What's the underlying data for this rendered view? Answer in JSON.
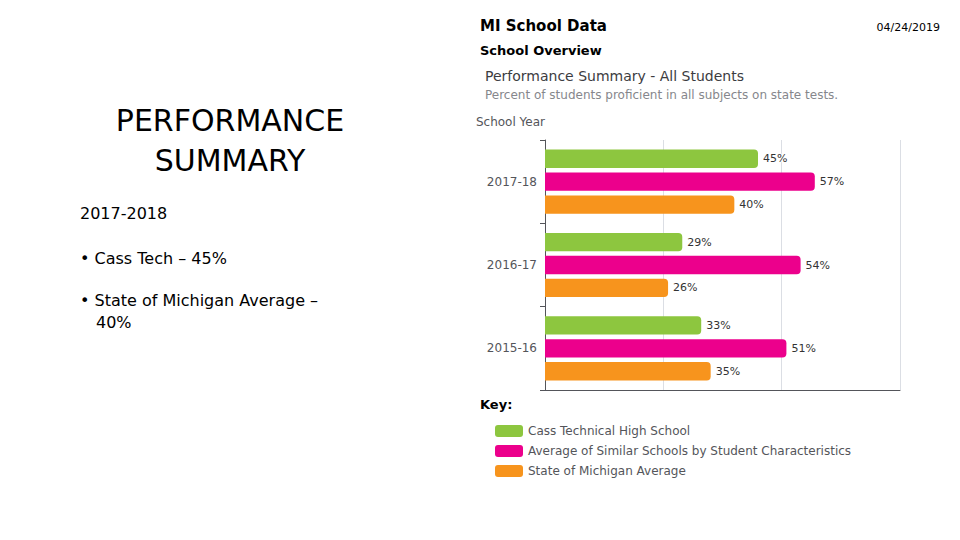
{
  "chart_data": {
    "type": "bar",
    "orientation": "horizontal",
    "title": "Performance Summary - All Students",
    "subtitle": "Percent of students proficient in all subjects on state tests.",
    "ylabel": "School Year",
    "categories": [
      "2015-16",
      "2016-17",
      "2017-18"
    ],
    "series": [
      {
        "name": "Cass Technical High School",
        "color": "#8dc63f",
        "values": [
          33,
          29,
          45
        ],
        "value_labels": [
          "33%",
          "29%",
          "45%"
        ]
      },
      {
        "name": "Average of Similar Schools by Student Characteristics",
        "color": "#ec008c",
        "values": [
          51,
          54,
          57
        ],
        "value_labels": [
          "51%",
          "54%",
          "57%"
        ]
      },
      {
        "name": "State of Michigan Average",
        "color": "#f7941d",
        "values": [
          35,
          26,
          40
        ],
        "value_labels": [
          "35%",
          "26%",
          "40%"
        ]
      }
    ],
    "xlim": [
      0,
      75
    ],
    "xticks": [
      0,
      25,
      50,
      75
    ],
    "grid": true,
    "tick_labels": "y",
    "data_labels": true,
    "legend": "bottom",
    "annotations": [
      "PERFORMANCE",
      "SUMMARY",
      "2017-2018",
      "• Cass Tech – 45%",
      "• State of Michigan Average –",
      "40%",
      "MI School Data",
      "04/24/2019",
      "School Overview",
      "Key:"
    ]
  }
}
